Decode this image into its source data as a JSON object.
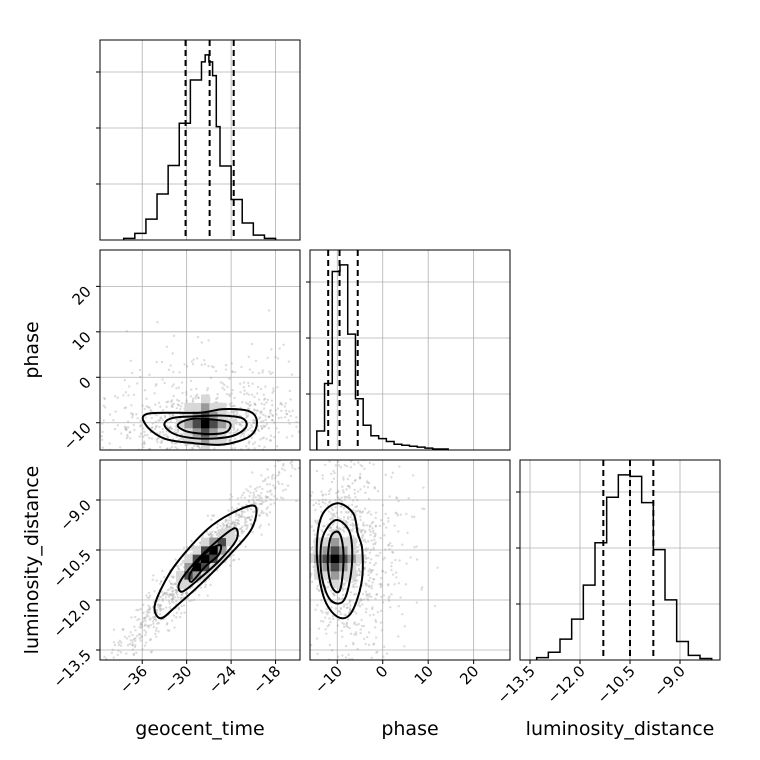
{
  "chart_data": {
    "type": "corner",
    "parameters": [
      "geocent_time",
      "phase",
      "luminosity_distance"
    ],
    "ticks": {
      "geocent_time": [
        -36,
        -30,
        -24,
        -18
      ],
      "phase": [
        -10,
        0,
        10,
        20
      ],
      "luminosity_distance": [
        -13.5,
        -12.0,
        -10.5,
        -9.0
      ]
    },
    "tick_labels": {
      "geocent_time": [
        "−36",
        "−30",
        "−24",
        "−18"
      ],
      "phase": [
        "−10",
        "0",
        "10",
        "20"
      ],
      "luminosity_distance": [
        "−13.5",
        "−12.0",
        "−10.5",
        "−9.0"
      ]
    },
    "ranges": {
      "geocent_time": [
        -41.7,
        -14.7
      ],
      "phase": [
        -16,
        28
      ],
      "luminosity_distance": [
        -13.8,
        -7.8
      ]
    },
    "grid": true,
    "quantiles": {
      "geocent_time": [
        -30.15,
        -26.9,
        -23.65
      ],
      "phase": [
        -12.0,
        -9.5,
        -5.5
      ],
      "luminosity_distance": [
        -11.3,
        -10.5,
        -9.8
      ]
    },
    "histograms": {
      "geocent_time": {
        "bin_edges": [
          -38.5,
          -37.0,
          -35.5,
          -34.0,
          -32.5,
          -31.0,
          -29.5,
          -28.0,
          -27.5,
          -27.0,
          -26.5,
          -26.0,
          -25.5,
          -24.0,
          -22.5,
          -21.0,
          -19.5,
          -18.0
        ],
        "counts": [
          0.3,
          1.2,
          3.8,
          8.4,
          13.6,
          21.3,
          29.2,
          32.5,
          33.8,
          32.5,
          30.0,
          20.7,
          13.5,
          7.4,
          3.1,
          0.9,
          0.3
        ]
      },
      "phase": {
        "bin_edges": [
          -14.5,
          -12.8,
          -11.1,
          -9.4,
          -7.7,
          -6.0,
          -4.3,
          -2.6,
          -0.9,
          0.8,
          2.5,
          4.2,
          5.9,
          7.6,
          9.3,
          11.0,
          12.7,
          14.4
        ],
        "counts": [
          2.0,
          7.0,
          18.8,
          19.5,
          12.2,
          5.4,
          2.6,
          1.5,
          1.2,
          0.9,
          0.6,
          0.5,
          0.4,
          0.3,
          0.2,
          0.1,
          0.1
        ]
      },
      "luminosity_distance": {
        "bin_edges": [
          -13.3,
          -12.95,
          -12.6,
          -12.25,
          -11.9,
          -11.55,
          -11.2,
          -10.85,
          -10.5,
          -10.15,
          -9.8,
          -9.45,
          -9.1,
          -8.75,
          -8.4,
          -8.05
        ],
        "counts": [
          0.3,
          1.0,
          2.7,
          5.3,
          9.7,
          15.2,
          21.1,
          24.0,
          23.8,
          20.4,
          14.3,
          7.8,
          2.4,
          0.6,
          0.2
        ]
      }
    },
    "contours_2d": [
      {
        "x": "geocent_time",
        "y": "phase",
        "peak": [
          -27.5,
          -10.2
        ],
        "levels": [
          [
            [
              -28.3,
              -7.8
            ],
            [
              -25.0,
              -7.0
            ],
            [
              -21.5,
              -7.5
            ],
            [
              -20.5,
              -10.0
            ],
            [
              -21.5,
              -13.0
            ],
            [
              -25.0,
              -14.8
            ],
            [
              -29.0,
              -14.5
            ],
            [
              -33.0,
              -13.5
            ],
            [
              -35.5,
              -10.5
            ],
            [
              -35.2,
              -8.0
            ]
          ],
          [
            [
              -29.0,
              -8.6
            ],
            [
              -25.5,
              -8.4
            ],
            [
              -22.5,
              -9.0
            ],
            [
              -22.0,
              -11.0
            ],
            [
              -24.0,
              -13.0
            ],
            [
              -28.0,
              -13.5
            ],
            [
              -31.5,
              -12.6
            ],
            [
              -33.0,
              -10.5
            ],
            [
              -32.0,
              -9.0
            ]
          ],
          [
            [
              -29.5,
              -9.2
            ],
            [
              -26.5,
              -9.3
            ],
            [
              -24.2,
              -10.0
            ],
            [
              -24.6,
              -12.0
            ],
            [
              -27.0,
              -12.5
            ],
            [
              -30.0,
              -11.9
            ],
            [
              -31.2,
              -10.5
            ]
          ]
        ]
      },
      {
        "x": "geocent_time",
        "y": "luminosity_distance",
        "peak": [
          -27.5,
          -10.75
        ],
        "levels": [
          [
            [
              -34.3,
              -12.15
            ],
            [
              -32.3,
              -11.2
            ],
            [
              -29.5,
              -10.4
            ],
            [
              -26.5,
              -9.75
            ],
            [
              -23.0,
              -9.3
            ],
            [
              -20.7,
              -9.2
            ],
            [
              -21.2,
              -9.85
            ],
            [
              -24.0,
              -10.6
            ],
            [
              -28.0,
              -11.5
            ],
            [
              -31.5,
              -12.2
            ],
            [
              -33.5,
              -12.55
            ]
          ],
          [
            [
              -31.0,
              -11.5
            ],
            [
              -29.0,
              -10.9
            ],
            [
              -26.0,
              -10.25
            ],
            [
              -23.5,
              -9.85
            ],
            [
              -23.3,
              -10.2
            ],
            [
              -25.5,
              -10.8
            ],
            [
              -28.5,
              -11.4
            ],
            [
              -30.6,
              -11.75
            ]
          ],
          [
            [
              -29.5,
              -11.2
            ],
            [
              -27.5,
              -10.6
            ],
            [
              -25.5,
              -10.35
            ],
            [
              -25.7,
              -10.65
            ],
            [
              -27.5,
              -11.0
            ],
            [
              -29.3,
              -11.45
            ]
          ]
        ]
      },
      {
        "x": "phase",
        "y": "luminosity_distance",
        "peak": [
          -10.5,
          -10.75
        ],
        "levels": [
          [
            [
              -13.5,
              -9.5
            ],
            [
              -10.0,
              -9.1
            ],
            [
              -6.5,
              -9.4
            ],
            [
              -5.5,
              -10.0
            ],
            [
              -4.5,
              -10.5
            ],
            [
              -4.7,
              -11.5
            ],
            [
              -7.0,
              -12.4
            ],
            [
              -10.0,
              -12.5
            ],
            [
              -13.0,
              -11.9
            ],
            [
              -14.5,
              -10.6
            ]
          ],
          [
            [
              -12.5,
              -9.9
            ],
            [
              -10.0,
              -9.6
            ],
            [
              -7.2,
              -10.0
            ],
            [
              -6.8,
              -11.0
            ],
            [
              -8.5,
              -12.0
            ],
            [
              -11.5,
              -12.0
            ],
            [
              -13.4,
              -11.3
            ],
            [
              -13.6,
              -10.4
            ]
          ],
          [
            [
              -11.4,
              -10.1
            ],
            [
              -9.5,
              -10.0
            ],
            [
              -8.6,
              -10.7
            ],
            [
              -9.4,
              -11.7
            ],
            [
              -11.2,
              -11.6
            ],
            [
              -12.1,
              -10.9
            ]
          ]
        ]
      }
    ]
  }
}
